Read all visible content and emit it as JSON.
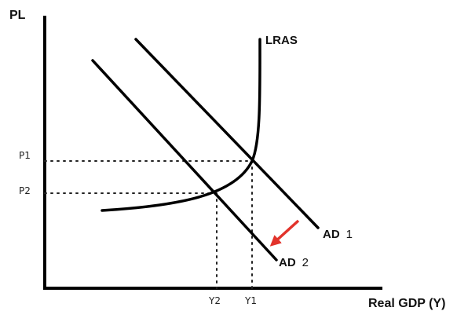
{
  "axes": {
    "y_label": "PL",
    "x_label": "Real GDP (Y)"
  },
  "curves": {
    "lras_label": "LRAS",
    "ad1_label": "AD",
    "ad1_num": "1",
    "ad2_label": "AD",
    "ad2_num": "2"
  },
  "ticks": {
    "p1": "P1",
    "p2": "P2",
    "y1": "Y1",
    "y2": "Y2"
  },
  "colors": {
    "line": "#000000",
    "arrow": "#e2332b",
    "guide": "#222222"
  },
  "arrow_meaning": "shift-left-down"
}
